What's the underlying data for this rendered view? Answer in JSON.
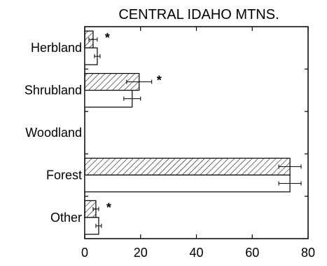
{
  "chart_data": {
    "type": "bar",
    "orientation": "horizontal",
    "title": "CENTRAL IDAHO MTNS.",
    "xlabel": "",
    "ylabel": "",
    "xlim": [
      0,
      80
    ],
    "x_ticks": [
      0,
      20,
      40,
      60,
      80
    ],
    "categories": [
      "Herbland",
      "Shrubland",
      "Woodland",
      "Forest",
      "Other"
    ],
    "series": [
      {
        "pattern": "hatched",
        "values": [
          3.0,
          19.5,
          0,
          73.5,
          4.0
        ],
        "errors": [
          1.5,
          4.5,
          0,
          4.0,
          1.0
        ]
      },
      {
        "pattern": "open",
        "values": [
          4.5,
          17.0,
          0,
          73.5,
          5.0
        ],
        "errors": [
          1.0,
          3.0,
          0,
          4.0,
          1.0
        ]
      }
    ],
    "significance": [
      {
        "category": "Herbland",
        "label": "*"
      },
      {
        "category": "Shrubland",
        "label": "*"
      },
      {
        "category": "Other",
        "label": "*"
      }
    ],
    "grid": false,
    "legend": "none"
  }
}
